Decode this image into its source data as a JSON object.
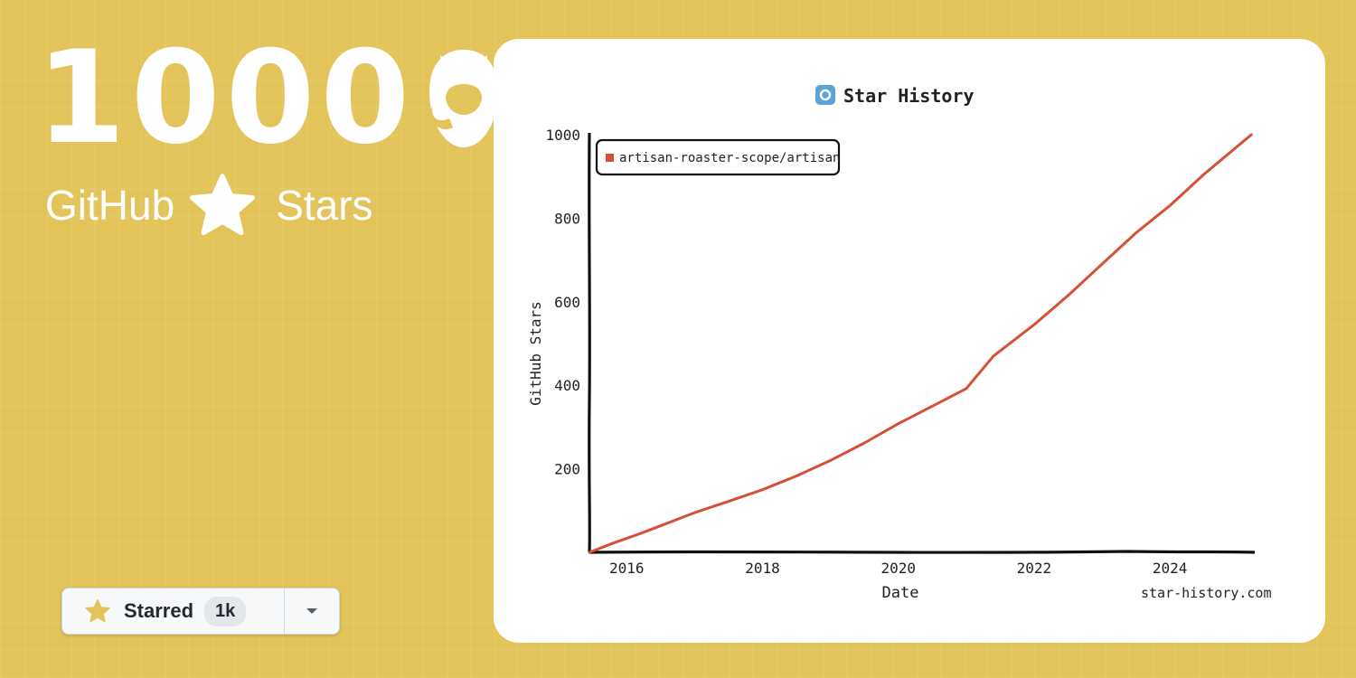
{
  "hero": {
    "number": "1000",
    "word_left": "GitHub",
    "word_right": "Stars"
  },
  "star_button": {
    "label": "Starred",
    "count": "1k"
  },
  "colors": {
    "background": "#e2c45a",
    "line": "#d45036",
    "star": "#e2c45a"
  },
  "icons": {
    "github": "github-octocat-icon",
    "star": "star-icon",
    "caret": "chevron-down-icon",
    "logo": "star-history-logo-icon"
  },
  "chart_data": {
    "type": "line",
    "title": "Star History",
    "xlabel": "Date",
    "ylabel": "GitHub Stars",
    "watermark": "star-history.com",
    "legend": {
      "placement": "top-left",
      "entries": [
        "artisan-roaster-scope/artisan"
      ]
    },
    "grid": false,
    "xlim": [
      2015.45,
      2025.25
    ],
    "ylim": [
      0,
      1000
    ],
    "x_ticks": [
      2016,
      2018,
      2020,
      2022,
      2024
    ],
    "y_ticks": [
      200,
      400,
      600,
      800,
      1000
    ],
    "series": [
      {
        "name": "artisan-roaster-scope/artisan",
        "x": [
          2015.45,
          2015.8,
          2016.2,
          2016.6,
          2017.0,
          2017.5,
          2018.0,
          2018.5,
          2019.0,
          2019.5,
          2020.0,
          2020.5,
          2021.0,
          2021.4,
          2022.0,
          2022.5,
          2023.0,
          2023.5,
          2024.0,
          2024.5,
          2025.2
        ],
        "y": [
          0,
          22,
          45,
          70,
          95,
          122,
          150,
          183,
          220,
          262,
          308,
          350,
          392,
          470,
          545,
          615,
          690,
          765,
          830,
          905,
          1000
        ]
      }
    ]
  }
}
